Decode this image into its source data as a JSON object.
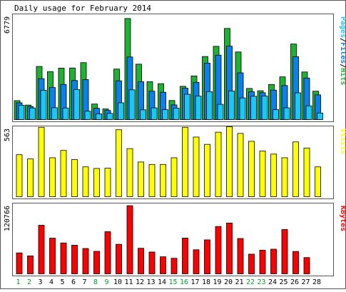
{
  "title": "Daily usage for February 2014",
  "colors": {
    "hits": "#1fb134",
    "files": "#0a80f0",
    "pages": "#1ac8f5",
    "visits": "#ffff00",
    "kbytes": "#ff0000",
    "weekend_day": "#0a9e2a",
    "weekday": "#000080",
    "border": "#555555",
    "bar_outline": "#000000"
  },
  "chart_data": [
    {
      "type": "bar",
      "title": "",
      "ymax_label": "6779",
      "legend": [
        "Pages",
        "Files",
        "Hits"
      ],
      "legend_colors": [
        "#1ac8f5",
        "#0a80f0",
        "#1fb134"
      ],
      "ylim": [
        0,
        6779
      ],
      "categories": [
        "1",
        "2",
        "3",
        "4",
        "5",
        "6",
        "7",
        "8",
        "9",
        "10",
        "11",
        "12",
        "13",
        "14",
        "15",
        "16",
        "17",
        "18",
        "19",
        "20",
        "21",
        "22",
        "23",
        "24",
        "25",
        "26",
        "27",
        "28"
      ],
      "series": [
        {
          "name": "Hits",
          "values": [
            1240,
            950,
            3480,
            3140,
            3370,
            3380,
            3730,
            1020,
            700,
            3310,
            6620,
            3630,
            2480,
            2350,
            1250,
            2180,
            2860,
            4130,
            4800,
            5970,
            4430,
            2040,
            1890,
            2300,
            2800,
            4950,
            3120,
            1860
          ]
        },
        {
          "name": "Files",
          "values": [
            1100,
            860,
            2680,
            2100,
            2300,
            2560,
            2620,
            740,
            600,
            2540,
            4100,
            2480,
            1860,
            1790,
            960,
            2060,
            2440,
            3700,
            4220,
            4810,
            3060,
            1830,
            1760,
            1930,
            2230,
            4120,
            2720,
            1620
          ]
        },
        {
          "name": "Pages",
          "values": [
            940,
            760,
            1920,
            780,
            760,
            1970,
            550,
            380,
            410,
            1100,
            1950,
            640,
            770,
            650,
            750,
            1660,
            1540,
            1830,
            1000,
            1870,
            1420,
            1530,
            1540,
            650,
            770,
            1750,
            900,
            430
          ]
        }
      ]
    },
    {
      "type": "bar",
      "title": "",
      "ymax_label": "563",
      "legend": [
        "Visits"
      ],
      "legend_colors": [
        "#ffff00"
      ],
      "ylim": [
        0,
        563
      ],
      "categories": [
        "1",
        "2",
        "3",
        "4",
        "5",
        "6",
        "7",
        "8",
        "9",
        "10",
        "11",
        "12",
        "13",
        "14",
        "15",
        "16",
        "17",
        "18",
        "19",
        "20",
        "21",
        "22",
        "23",
        "24",
        "25",
        "26",
        "27",
        "28"
      ],
      "series": [
        {
          "name": "Visits",
          "values": [
            345,
            310,
            570,
            320,
            380,
            305,
            245,
            232,
            234,
            550,
            395,
            285,
            265,
            265,
            320,
            570,
            490,
            430,
            530,
            575,
            520,
            455,
            375,
            350,
            320,
            450,
            400,
            245
          ]
        }
      ]
    },
    {
      "type": "bar",
      "title": "",
      "ymax_label": "120766",
      "legend": [
        "KBytes"
      ],
      "legend_colors": [
        "#ff0000"
      ],
      "ylim": [
        0,
        120766
      ],
      "categories": [
        "1",
        "2",
        "3",
        "4",
        "5",
        "6",
        "7",
        "8",
        "9",
        "10",
        "11",
        "12",
        "13",
        "14",
        "15",
        "16",
        "17",
        "18",
        "19",
        "20",
        "21",
        "22",
        "23",
        "24",
        "25",
        "26",
        "27",
        "28"
      ],
      "series": [
        {
          "name": "KBytes",
          "values": [
            36800,
            31600,
            85600,
            62800,
            54400,
            50400,
            44600,
            39600,
            74200,
            52000,
            120000,
            45000,
            38400,
            30000,
            27400,
            63000,
            42400,
            59800,
            83400,
            89400,
            62200,
            34600,
            41600,
            43400,
            78000,
            39400,
            28600,
            0
          ]
        }
      ]
    }
  ],
  "weekend_days": [
    1,
    2,
    8,
    9,
    15,
    16,
    22,
    23
  ]
}
